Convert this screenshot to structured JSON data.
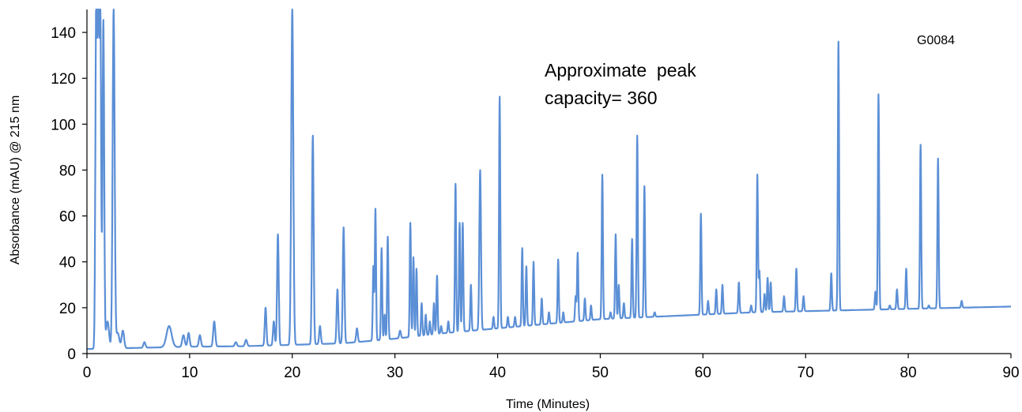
{
  "chart_data": {
    "type": "line",
    "xlabel": "Time (Minutes)",
    "ylabel": "Absorbance (mAU) @ 215 nm",
    "xlim": [
      0,
      90
    ],
    "ylim": [
      0,
      150
    ],
    "x_ticks": [
      0,
      10,
      20,
      30,
      40,
      50,
      60,
      70,
      80,
      90
    ],
    "y_ticks": [
      0,
      20,
      40,
      60,
      80,
      100,
      120,
      140
    ],
    "grid": false,
    "annotations": {
      "peak_capacity_line1": "Approximate  peak",
      "peak_capacity_line2": "capacity= 360",
      "sample_id": "G0084"
    },
    "line_color": "#5b8fd6",
    "series": [
      {
        "baseline": [
          [
            0,
            2
          ],
          [
            5,
            2.5
          ],
          [
            10,
            3
          ],
          [
            15,
            3.2
          ],
          [
            20,
            3.8
          ],
          [
            25,
            4.5
          ],
          [
            30,
            6.5
          ],
          [
            35,
            9
          ],
          [
            40,
            11
          ],
          [
            45,
            13
          ],
          [
            50,
            15
          ],
          [
            55,
            16
          ],
          [
            60,
            17
          ],
          [
            65,
            18
          ],
          [
            70,
            18.5
          ],
          [
            75,
            19
          ],
          [
            80,
            19.5
          ],
          [
            85,
            20
          ],
          [
            90,
            20.5
          ]
        ],
        "peaks": [
          [
            0.9,
            150,
            0.08
          ],
          [
            1.1,
            150,
            0.08
          ],
          [
            1.3,
            150,
            0.08
          ],
          [
            1.6,
            145,
            0.08
          ],
          [
            2.0,
            14,
            0.15
          ],
          [
            2.6,
            150,
            0.1
          ],
          [
            3.0,
            9,
            0.15
          ],
          [
            3.5,
            10,
            0.12
          ],
          [
            5.6,
            5,
            0.1
          ],
          [
            8.0,
            12,
            0.25
          ],
          [
            9.4,
            8,
            0.12
          ],
          [
            9.9,
            9,
            0.1
          ],
          [
            11.0,
            8,
            0.1
          ],
          [
            12.4,
            14,
            0.1
          ],
          [
            14.5,
            5,
            0.1
          ],
          [
            15.5,
            6,
            0.1
          ],
          [
            17.4,
            20,
            0.08
          ],
          [
            18.2,
            14,
            0.08
          ],
          [
            18.6,
            52,
            0.08
          ],
          [
            20.0,
            150,
            0.1
          ],
          [
            22.0,
            95,
            0.08
          ],
          [
            22.7,
            12,
            0.08
          ],
          [
            24.4,
            28,
            0.08
          ],
          [
            25.0,
            55,
            0.08
          ],
          [
            26.3,
            11,
            0.08
          ],
          [
            27.9,
            38,
            0.06
          ],
          [
            28.1,
            63,
            0.06
          ],
          [
            28.7,
            46,
            0.06
          ],
          [
            29.0,
            17,
            0.06
          ],
          [
            29.3,
            51,
            0.06
          ],
          [
            30.5,
            10,
            0.08
          ],
          [
            31.5,
            57,
            0.06
          ],
          [
            31.8,
            42,
            0.06
          ],
          [
            32.1,
            37,
            0.06
          ],
          [
            32.6,
            22,
            0.06
          ],
          [
            33.0,
            17,
            0.06
          ],
          [
            33.4,
            14,
            0.06
          ],
          [
            33.8,
            22,
            0.06
          ],
          [
            34.1,
            34,
            0.06
          ],
          [
            34.5,
            12,
            0.06
          ],
          [
            35.2,
            14,
            0.06
          ],
          [
            35.9,
            74,
            0.06
          ],
          [
            36.3,
            57,
            0.06
          ],
          [
            36.6,
            57,
            0.06
          ],
          [
            37.4,
            30,
            0.06
          ],
          [
            38.3,
            80,
            0.08
          ],
          [
            39.6,
            16,
            0.06
          ],
          [
            40.2,
            112,
            0.06
          ],
          [
            41.0,
            16,
            0.06
          ],
          [
            41.7,
            16,
            0.06
          ],
          [
            42.4,
            46,
            0.06
          ],
          [
            42.8,
            38,
            0.06
          ],
          [
            43.5,
            40,
            0.06
          ],
          [
            44.3,
            24,
            0.06
          ],
          [
            45.0,
            18,
            0.06
          ],
          [
            45.9,
            41,
            0.06
          ],
          [
            46.4,
            18,
            0.06
          ],
          [
            47.6,
            25,
            0.06
          ],
          [
            47.8,
            44,
            0.06
          ],
          [
            48.5,
            24,
            0.06
          ],
          [
            49.1,
            21,
            0.06
          ],
          [
            50.2,
            78,
            0.06
          ],
          [
            51.0,
            18,
            0.06
          ],
          [
            51.5,
            52,
            0.06
          ],
          [
            51.8,
            30,
            0.06
          ],
          [
            52.3,
            22,
            0.06
          ],
          [
            53.1,
            50,
            0.06
          ],
          [
            53.6,
            95,
            0.06
          ],
          [
            54.3,
            73,
            0.06
          ],
          [
            55.3,
            18,
            0.06
          ],
          [
            59.8,
            61,
            0.06
          ],
          [
            60.5,
            23,
            0.06
          ],
          [
            61.3,
            28,
            0.06
          ],
          [
            61.9,
            30,
            0.06
          ],
          [
            63.5,
            31,
            0.06
          ],
          [
            64.7,
            21,
            0.06
          ],
          [
            65.3,
            78,
            0.06
          ],
          [
            65.5,
            36,
            0.06
          ],
          [
            66.0,
            26,
            0.06
          ],
          [
            66.3,
            33,
            0.06
          ],
          [
            66.6,
            31,
            0.06
          ],
          [
            67.9,
            25,
            0.06
          ],
          [
            69.1,
            37,
            0.06
          ],
          [
            69.8,
            25,
            0.06
          ],
          [
            72.5,
            35,
            0.06
          ],
          [
            73.2,
            136,
            0.06
          ],
          [
            76.8,
            27,
            0.06
          ],
          [
            77.1,
            113,
            0.06
          ],
          [
            78.2,
            21,
            0.06
          ],
          [
            78.9,
            28,
            0.06
          ],
          [
            79.8,
            37,
            0.06
          ],
          [
            81.2,
            91,
            0.06
          ],
          [
            82.0,
            21,
            0.06
          ],
          [
            82.9,
            85,
            0.06
          ],
          [
            85.2,
            23,
            0.06
          ]
        ]
      }
    ]
  }
}
